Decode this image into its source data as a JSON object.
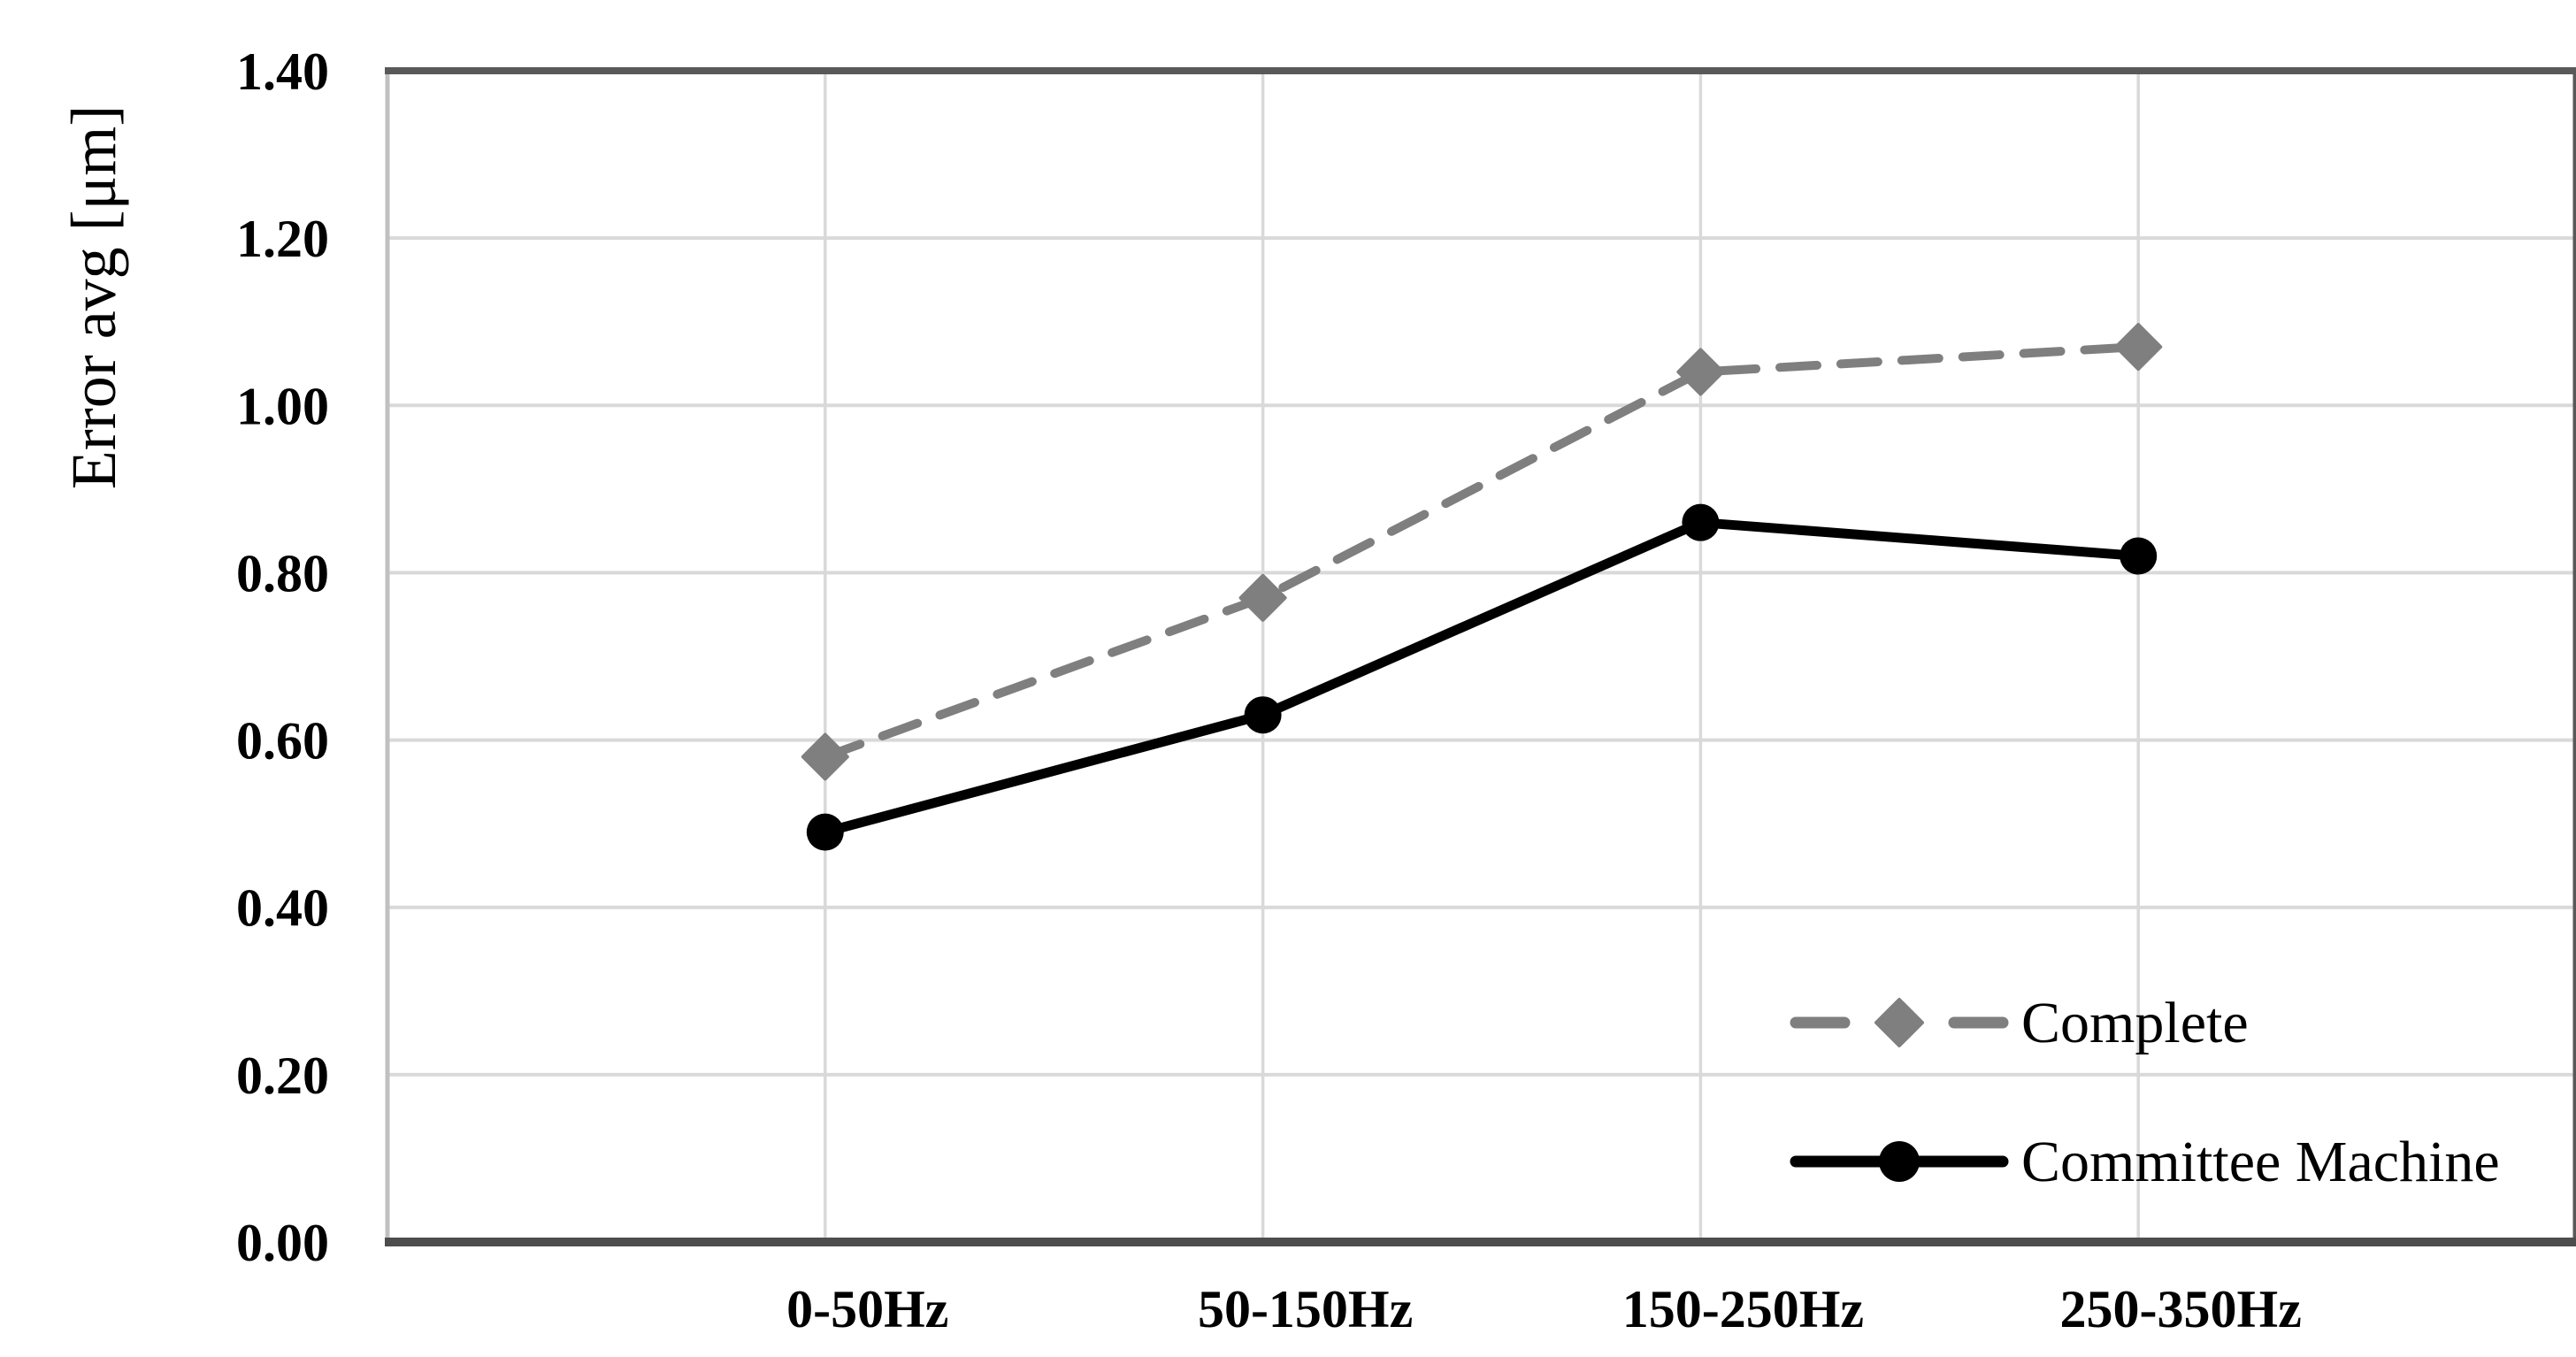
{
  "chart_data": {
    "type": "line",
    "title": "",
    "ylabel": "Error avg [μm]",
    "xlabel": "",
    "categories": [
      "0-50Hz",
      "50-150Hz",
      "150-250Hz",
      "250-350Hz"
    ],
    "series": [
      {
        "name": "Complete",
        "values": [
          0.58,
          0.77,
          1.04,
          1.07
        ],
        "color": "#7f7f7f",
        "line_style": "dashed",
        "marker": "diamond"
      },
      {
        "name": "Committee Machine",
        "values": [
          0.49,
          0.63,
          0.86,
          0.82
        ],
        "color": "#000000",
        "line_style": "solid",
        "marker": "circle"
      }
    ],
    "ylim": [
      0.0,
      1.4
    ],
    "ytick_step": 0.2,
    "ytick_labels": [
      "0.00",
      "0.20",
      "0.40",
      "0.60",
      "0.80",
      "1.00",
      "1.20",
      "1.40"
    ],
    "grid": {
      "horizontal": true,
      "vertical": true,
      "gridline_color": "#d9d9d9",
      "left_border_color": "#c0c0c0",
      "dark_border_color": "#595959",
      "bottom_axis_color": "#4d4d4d"
    },
    "legend": {
      "position": "inside-bottom-right",
      "entries": [
        "Complete",
        "Committee Machine"
      ]
    },
    "background_color": "#ffffff",
    "text_color": "#000000"
  }
}
